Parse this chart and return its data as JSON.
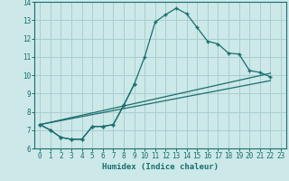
{
  "xlabel": "Humidex (Indice chaleur)",
  "background_color": "#cce8e8",
  "grid_color": "#aacece",
  "line_color": "#1a6e6e",
  "xlim": [
    -0.5,
    23.5
  ],
  "ylim": [
    6,
    14
  ],
  "xticks": [
    0,
    1,
    2,
    3,
    4,
    5,
    6,
    7,
    8,
    9,
    10,
    11,
    12,
    13,
    14,
    15,
    16,
    17,
    18,
    19,
    20,
    21,
    22,
    23
  ],
  "yticks": [
    6,
    7,
    8,
    9,
    10,
    11,
    12,
    13,
    14
  ],
  "curve_x": [
    0,
    1,
    2,
    3,
    4,
    5,
    6,
    7,
    8,
    9,
    10,
    11,
    12,
    13,
    14,
    15,
    16,
    17,
    18,
    19,
    20,
    21,
    22
  ],
  "curve_y": [
    7.3,
    7.0,
    6.6,
    6.5,
    6.5,
    7.2,
    7.2,
    7.3,
    8.35,
    9.5,
    11.0,
    12.9,
    13.3,
    13.65,
    13.35,
    12.6,
    11.85,
    11.7,
    11.2,
    11.15,
    10.25,
    10.15,
    9.9
  ],
  "line1_x": [
    0,
    22
  ],
  "line1_y": [
    7.3,
    10.1
  ],
  "line2_x": [
    0,
    22
  ],
  "line2_y": [
    7.3,
    9.7
  ],
  "short_x": [
    0,
    1,
    2,
    3,
    4,
    5,
    6,
    7,
    8,
    9
  ],
  "short_y": [
    7.3,
    7.0,
    6.6,
    6.5,
    6.5,
    7.2,
    7.2,
    7.3,
    8.35,
    9.5
  ]
}
